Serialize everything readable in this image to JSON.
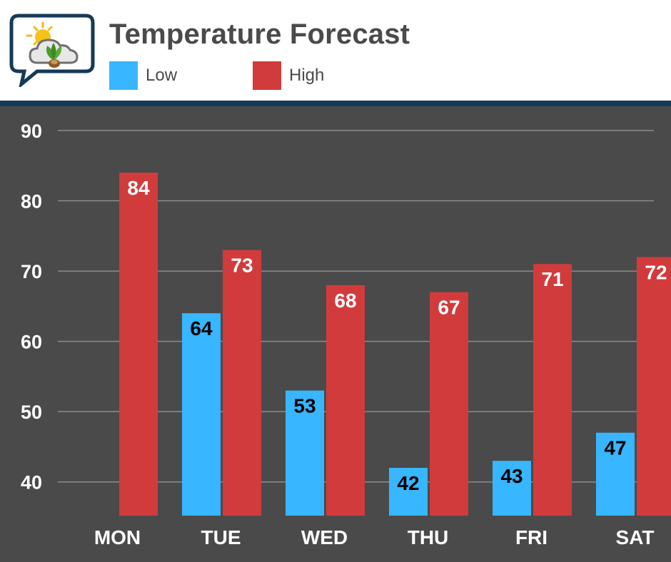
{
  "header": {
    "title": "Temperature Forecast",
    "logo_icon": "weather-plant-logo-icon"
  },
  "legend": [
    {
      "label": "Low",
      "color": "#38b6ff"
    },
    {
      "label": "High",
      "color": "#d23b3c"
    }
  ],
  "colors": {
    "plot_background": "#4a4a4a",
    "divider": "#153a58",
    "gridline": "#8c8c8c",
    "axis_text": "#ffffff",
    "low_label_text": "#000000",
    "high_label_text": "#ffffff"
  },
  "chart_data": {
    "type": "bar",
    "title": "Temperature Forecast",
    "xlabel": "",
    "ylabel": "",
    "categories": [
      "MON",
      "TUE",
      "WED",
      "THU",
      "FRI",
      "SAT"
    ],
    "series": [
      {
        "name": "Low",
        "values": [
          null,
          64,
          53,
          42,
          43,
          47
        ]
      },
      {
        "name": "High",
        "values": [
          84,
          73,
          68,
          67,
          71,
          72
        ]
      }
    ],
    "y_ticks": [
      40,
      50,
      60,
      70,
      80,
      90
    ],
    "ylim": [
      35.2,
      90
    ],
    "grid": true,
    "legend_position": "top"
  }
}
